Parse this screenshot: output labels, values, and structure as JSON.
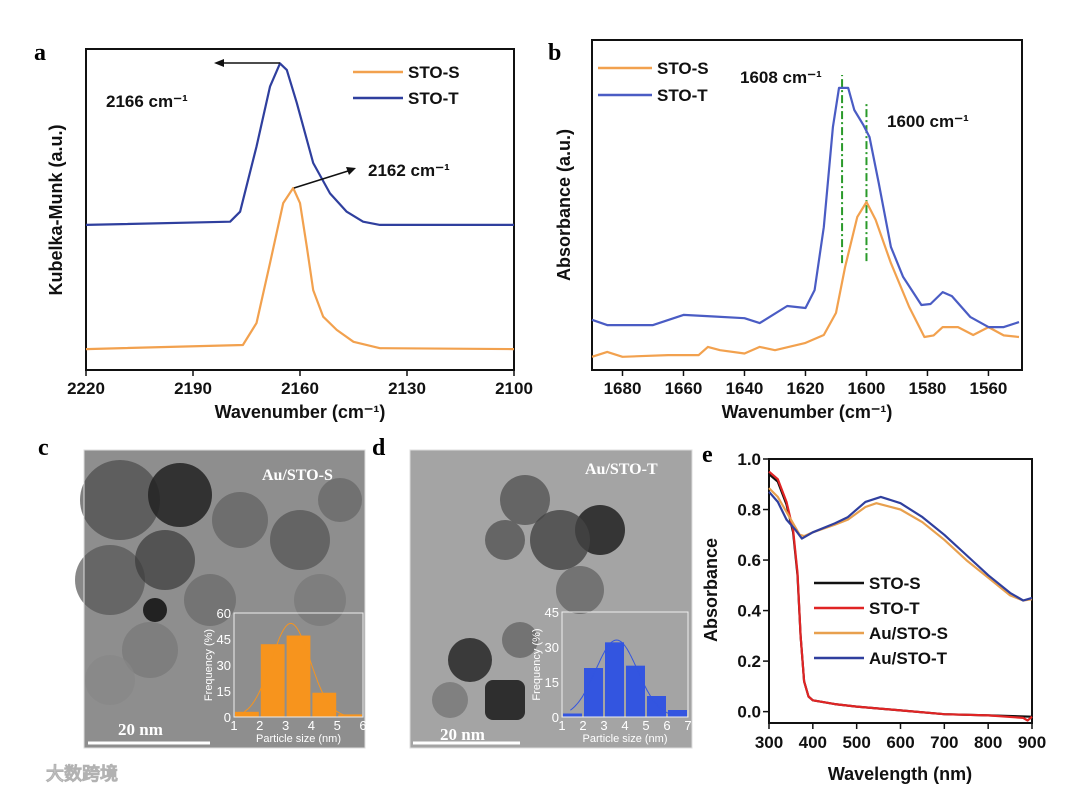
{
  "panel_labels": [
    "a",
    "b",
    "c",
    "d",
    "e"
  ],
  "watermark": "大数跨境",
  "chart_data": [
    {
      "panel": "a",
      "type": "line",
      "xlabel": "Wavenumber (cm⁻¹)",
      "ylabel": "Kubelka-Munk (a.u.)",
      "xlim": [
        2220,
        2100
      ],
      "ylim": [
        0,
        1
      ],
      "xticks": [
        2220,
        2190,
        2160,
        2130,
        2100
      ],
      "legend": "top-right",
      "annotations": [
        "2166 cm⁻¹",
        "2162 cm⁻¹"
      ],
      "series": [
        {
          "name": "STO-S",
          "color": "#f2a14e",
          "x": [
            2220,
            2176,
            2172.2,
            2168.4,
            2164.7,
            2161.9,
            2160,
            2158.1,
            2156.3,
            2153.5,
            2149.7,
            2145,
            2137.6,
            2100
          ],
          "y": [
            0.065,
            0.078,
            0.146,
            0.333,
            0.52,
            0.567,
            0.52,
            0.384,
            0.249,
            0.166,
            0.125,
            0.088,
            0.068,
            0.065
          ]
        },
        {
          "name": "STO-T",
          "color": "#2f3f9e",
          "x": [
            2220,
            2179.6,
            2176.8,
            2172.2,
            2168.4,
            2165.6,
            2163.7,
            2160.9,
            2156.3,
            2151.6,
            2146.9,
            2142.3,
            2137.6,
            2100
          ],
          "y": [
            0.452,
            0.462,
            0.493,
            0.696,
            0.883,
            0.955,
            0.935,
            0.832,
            0.645,
            0.55,
            0.493,
            0.462,
            0.452,
            0.452
          ]
        }
      ]
    },
    {
      "panel": "b",
      "type": "line",
      "xlabel": "Wavenumber (cm⁻¹)",
      "ylabel": "Absorbance (a.u.)",
      "xlim": [
        1690,
        1549
      ],
      "ylim": [
        0,
        1
      ],
      "xticks": [
        1680,
        1660,
        1640,
        1620,
        1600,
        1580,
        1560
      ],
      "legend": "top-left",
      "annotations": [
        "1608 cm⁻¹",
        "1600 cm⁻¹"
      ],
      "markers": [
        {
          "x": 1608,
          "y": [
            0.324,
            0.894
          ]
        },
        {
          "x": 1600,
          "y": [
            0.33,
            0.809
          ]
        }
      ],
      "series": [
        {
          "name": "STO-S",
          "color": "#f2a14e",
          "x": [
            1690,
            1685,
            1680,
            1665,
            1655,
            1652,
            1648,
            1640,
            1635,
            1630,
            1620,
            1614,
            1610,
            1607,
            1603,
            1600,
            1597,
            1592,
            1586,
            1581,
            1578,
            1575,
            1570,
            1565,
            1560,
            1555,
            1550
          ],
          "y": [
            0.04,
            0.055,
            0.04,
            0.045,
            0.045,
            0.07,
            0.06,
            0.05,
            0.07,
            0.06,
            0.082,
            0.106,
            0.173,
            0.312,
            0.464,
            0.509,
            0.455,
            0.324,
            0.191,
            0.1,
            0.105,
            0.13,
            0.13,
            0.106,
            0.13,
            0.105,
            0.1
          ]
        },
        {
          "name": "STO-T",
          "color": "#4a5cc4",
          "x": [
            1690,
            1685,
            1670,
            1660,
            1650,
            1640,
            1635,
            1626,
            1620,
            1617,
            1614,
            1611,
            1609,
            1606,
            1604,
            1601,
            1599,
            1596,
            1592,
            1588,
            1582,
            1579,
            1575,
            1572,
            1566,
            1560,
            1555,
            1550
          ],
          "y": [
            0.152,
            0.136,
            0.136,
            0.167,
            0.162,
            0.157,
            0.142,
            0.194,
            0.188,
            0.242,
            0.433,
            0.736,
            0.855,
            0.855,
            0.788,
            0.742,
            0.706,
            0.567,
            0.373,
            0.282,
            0.197,
            0.2,
            0.236,
            0.224,
            0.161,
            0.13,
            0.13,
            0.145
          ]
        }
      ]
    },
    {
      "panel": "c",
      "type": "bar",
      "image_label": "Au/STO-S",
      "scale_bar": "20 nm",
      "xlabel": "Particle size (nm)",
      "ylabel": "Frequency (%)",
      "xlim": [
        1,
        6
      ],
      "ylim": [
        0,
        60
      ],
      "xticks": [
        1,
        2,
        3,
        4,
        5,
        6
      ],
      "yticks": [
        0,
        15,
        30,
        45,
        60
      ],
      "color": "#f7941d",
      "bins": [
        [
          1,
          2,
          3
        ],
        [
          2,
          3,
          42
        ],
        [
          3,
          4,
          47
        ],
        [
          4,
          5,
          14
        ],
        [
          5,
          6,
          1.5
        ]
      ],
      "fit": {
        "mean": 3.2,
        "sigma": 0.75,
        "amplitude": 54
      }
    },
    {
      "panel": "d",
      "type": "bar",
      "image_label": "Au/STO-T",
      "scale_bar": "20 nm",
      "xlabel": "Particle size (nm)",
      "ylabel": "Frequency (%)",
      "xlim": [
        1,
        7
      ],
      "ylim": [
        0,
        45
      ],
      "xticks": [
        1,
        2,
        3,
        4,
        5,
        6,
        7
      ],
      "yticks": [
        0,
        15,
        30,
        45
      ],
      "color": "#3355e0",
      "bins": [
        [
          1,
          2,
          1.5
        ],
        [
          2,
          3,
          21
        ],
        [
          3,
          4,
          32
        ],
        [
          4,
          5,
          22
        ],
        [
          5,
          6,
          9
        ],
        [
          6,
          7,
          3
        ]
      ],
      "fit": {
        "mean": 3.6,
        "sigma": 1.0,
        "amplitude": 33
      }
    },
    {
      "panel": "e",
      "type": "line",
      "xlabel": "Wavelength (nm)",
      "ylabel": "Absorbance",
      "xlim": [
        300,
        900
      ],
      "ylim": [
        -0.045,
        1.0
      ],
      "xticks": [
        300,
        400,
        500,
        600,
        700,
        800,
        900
      ],
      "yticks": [
        0,
        0.2,
        0.4,
        0.6,
        0.8,
        1.0
      ],
      "yticklabels": [
        "0.0",
        "0.2",
        "0.4",
        "0.6",
        "0.8",
        "1.0"
      ],
      "legend": "center",
      "series": [
        {
          "name": "STO-S",
          "color": "#111111",
          "x": [
            300,
            320,
            340,
            355,
            365,
            372,
            380,
            390,
            400,
            450,
            500,
            600,
            700,
            800,
            900
          ],
          "y": [
            0.94,
            0.91,
            0.82,
            0.71,
            0.54,
            0.3,
            0.12,
            0.06,
            0.045,
            0.03,
            0.02,
            0.005,
            -0.01,
            -0.015,
            -0.02
          ]
        },
        {
          "name": "STO-T",
          "color": "#e02424",
          "x": [
            300,
            320,
            340,
            355,
            365,
            372,
            380,
            390,
            400,
            450,
            500,
            600,
            700,
            800,
            880,
            890,
            900
          ],
          "y": [
            0.95,
            0.92,
            0.83,
            0.72,
            0.55,
            0.3,
            0.12,
            0.06,
            0.045,
            0.03,
            0.02,
            0.005,
            -0.01,
            -0.015,
            -0.025,
            -0.035,
            -0.02
          ]
        },
        {
          "name": "Au/STO-S",
          "color": "#e8a04e",
          "x": [
            300,
            320,
            350,
            370,
            380,
            400,
            450,
            480,
            520,
            545,
            600,
            650,
            700,
            750,
            800,
            850,
            880,
            900
          ],
          "y": [
            0.885,
            0.85,
            0.76,
            0.7,
            0.695,
            0.71,
            0.74,
            0.76,
            0.81,
            0.825,
            0.8,
            0.75,
            0.68,
            0.6,
            0.53,
            0.46,
            0.44,
            0.445
          ]
        },
        {
          "name": "Au/STO-T",
          "color": "#2f3f9e",
          "x": [
            300,
            320,
            340,
            360,
            375,
            400,
            450,
            480,
            520,
            555,
            600,
            650,
            700,
            750,
            800,
            850,
            880,
            900
          ],
          "y": [
            0.87,
            0.83,
            0.76,
            0.72,
            0.685,
            0.71,
            0.745,
            0.77,
            0.83,
            0.85,
            0.825,
            0.77,
            0.7,
            0.62,
            0.54,
            0.47,
            0.44,
            0.45
          ]
        }
      ]
    }
  ]
}
